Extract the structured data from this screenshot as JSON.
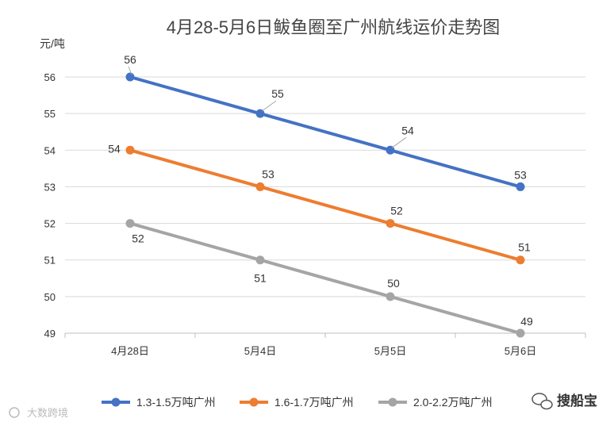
{
  "chart_data": {
    "type": "line",
    "title": "4月28-5月6日鲅鱼圈至广州航线运价走势图",
    "ylabel": "元/吨",
    "xlabel": "",
    "categories": [
      "4月28日",
      "5月4日",
      "5月5日",
      "5月6日"
    ],
    "ylim": [
      49,
      56
    ],
    "yticks": [
      49,
      50,
      51,
      52,
      53,
      54,
      55,
      56
    ],
    "grid": true,
    "legend_position": "bottom",
    "series": [
      {
        "name": "1.3-1.5万吨广州",
        "values": [
          56,
          55,
          54,
          53
        ],
        "color": "#4472C4"
      },
      {
        "name": "1.6-1.7万吨广州",
        "values": [
          54,
          53,
          52,
          51
        ],
        "color": "#ED7D31"
      },
      {
        "name": "2.0-2.2万吨广州",
        "values": [
          52,
          51,
          50,
          49
        ],
        "color": "#A5A5A5"
      }
    ]
  },
  "watermark": "大数跨境",
  "brand": "搜船宝"
}
